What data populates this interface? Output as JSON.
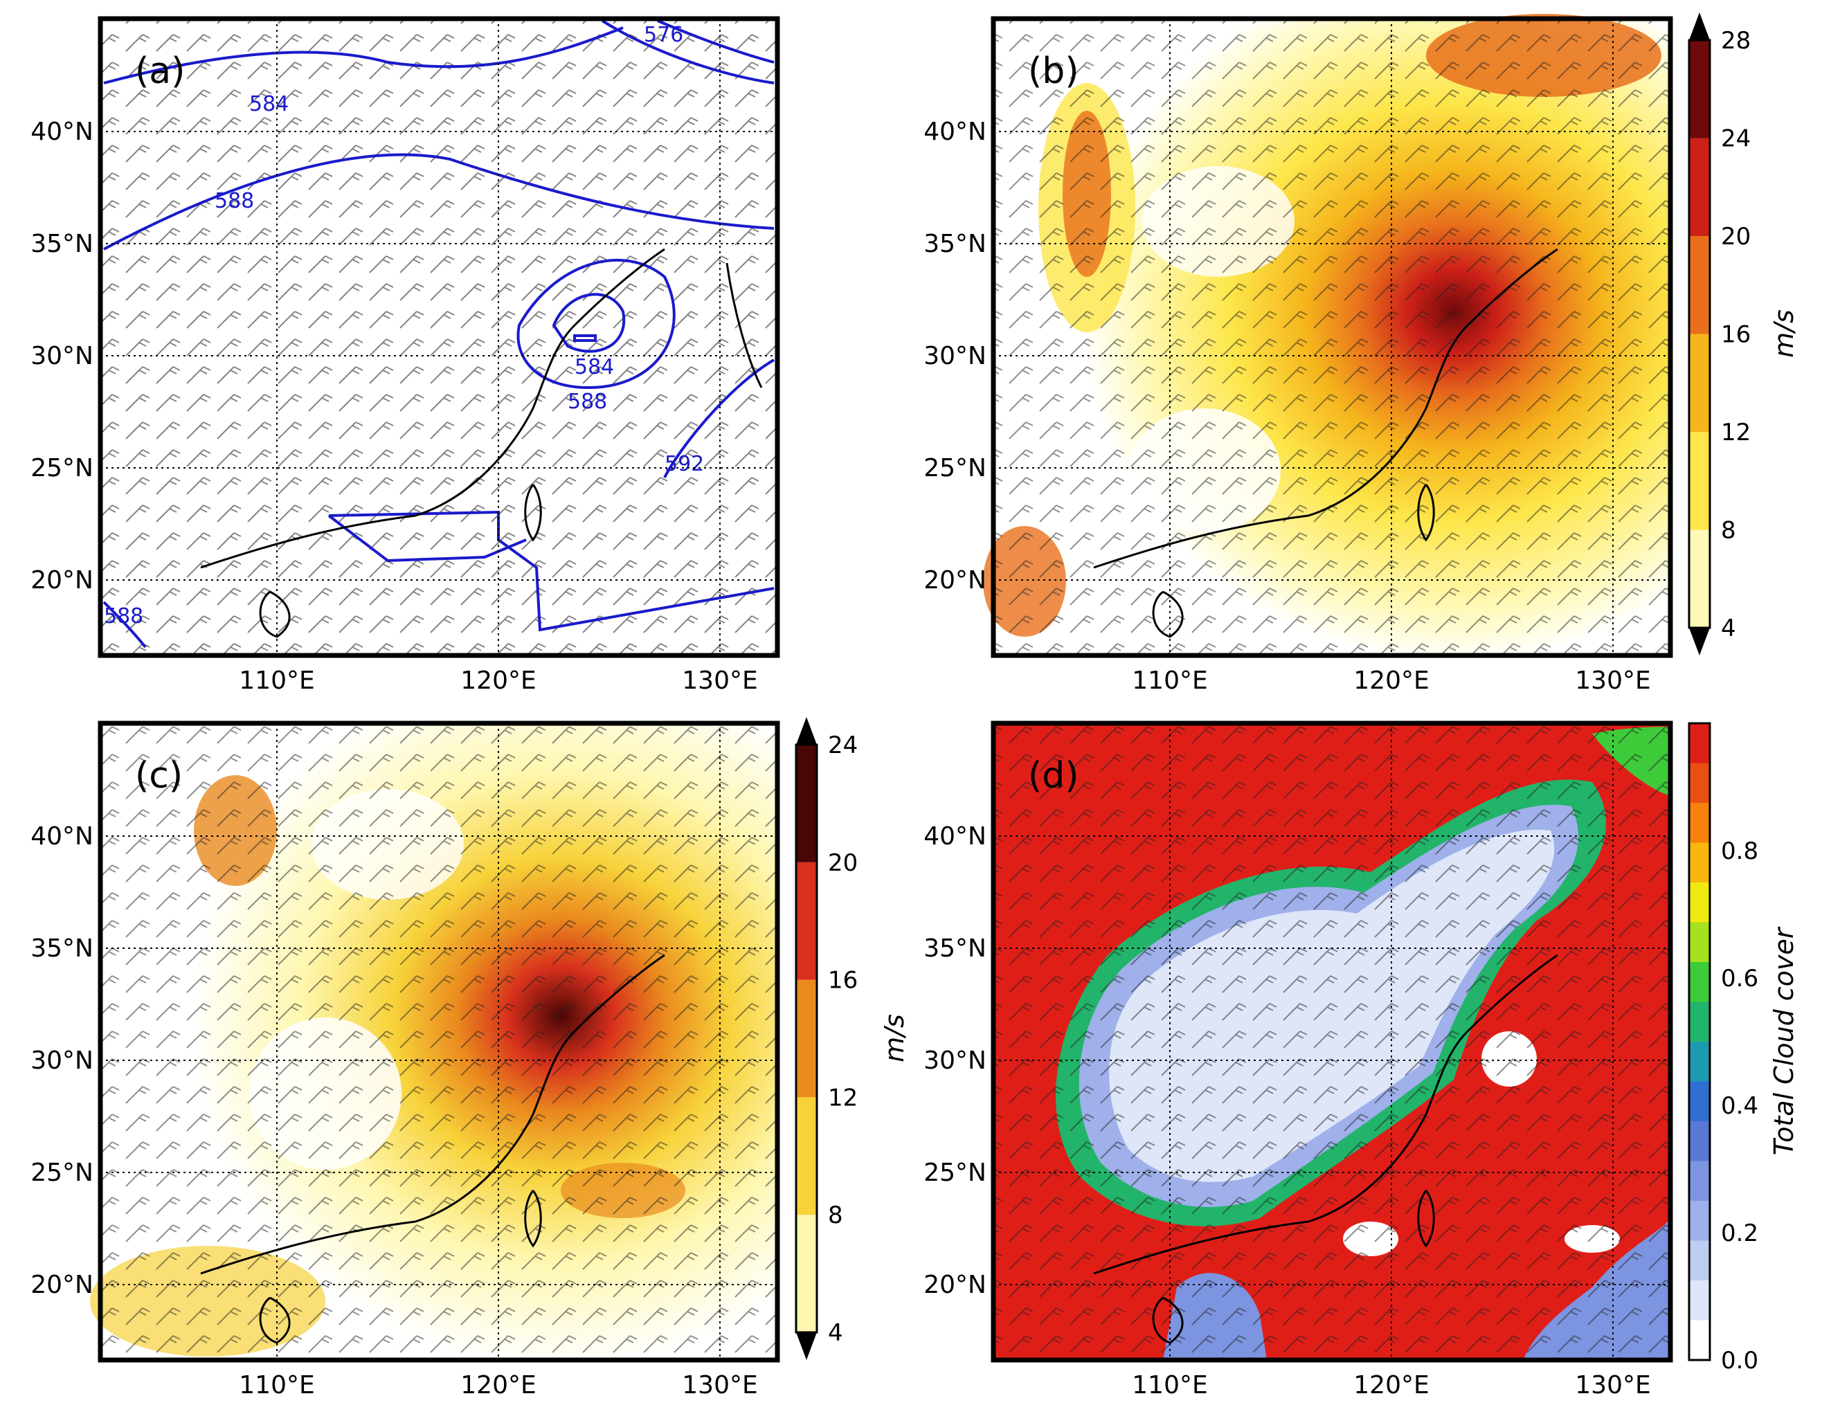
{
  "lat_labels": [
    "40°N",
    "35°N",
    "30°N",
    "25°N",
    "20°N"
  ],
  "lon_labels": [
    "110°E",
    "120°E",
    "130°E"
  ],
  "lat_values": [
    40,
    35,
    30,
    25,
    20
  ],
  "lon_values": [
    110,
    120,
    130
  ],
  "panels": [
    {
      "id": "a",
      "label": "(a)",
      "contours": [
        {
          "text": "584",
          "value": 584
        },
        {
          "text": "588",
          "value": 588
        },
        {
          "text": "592",
          "value": 592
        },
        {
          "text": "576",
          "value": 576
        },
        {
          "text": "584",
          "value": 584
        },
        {
          "text": "588",
          "value": 588
        },
        {
          "text": "588",
          "value": 588
        }
      ]
    },
    {
      "id": "b",
      "label": "(b)",
      "colorbar": {
        "unit": "m/s",
        "ticks": [
          "4",
          "8",
          "12",
          "16",
          "20",
          "24",
          "28"
        ],
        "colors": [
          "#fef9b8",
          "#fde64a",
          "#f5b51c",
          "#e8701c",
          "#cc2018",
          "#6e0a0a"
        ]
      }
    },
    {
      "id": "c",
      "label": "(c)",
      "colorbar": {
        "unit": "m/s",
        "ticks": [
          "4",
          "8",
          "12",
          "16",
          "20",
          "24"
        ],
        "colors": [
          "#fef7b0",
          "#f7d23a",
          "#ea8a1e",
          "#d7301c",
          "#4a0606"
        ]
      }
    },
    {
      "id": "d",
      "label": "(d)",
      "colorbar": {
        "unit": "Total Cloud cover",
        "ticks": [
          "0.0",
          "0.2",
          "0.4",
          "0.6",
          "0.8"
        ],
        "colors": [
          "#ffffff",
          "#dfe6f8",
          "#c0cdf2",
          "#9fb0ea",
          "#7d94e0",
          "#5a78d6",
          "#2f6fd2",
          "#1c9ab0",
          "#22b46a",
          "#3ecb3a",
          "#a6e01e",
          "#f0ea10",
          "#f8b60e",
          "#f4820c",
          "#ea4e12",
          "#e01e18"
        ]
      }
    }
  ]
}
